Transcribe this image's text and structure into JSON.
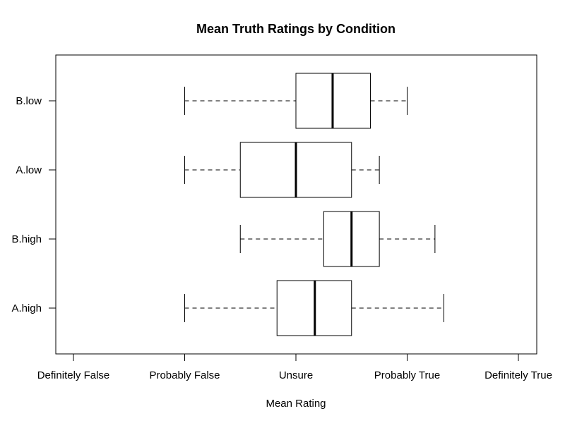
{
  "chart_data": {
    "type": "boxplot",
    "orientation": "horizontal",
    "title": "Mean Truth Ratings by Condition",
    "xlabel": "Mean Rating",
    "ylabel": "",
    "xlim": [
      1,
      5
    ],
    "x_ticks": [
      {
        "value": 1,
        "label": "Definitely False"
      },
      {
        "value": 2,
        "label": "Probably False"
      },
      {
        "value": 3,
        "label": "Unsure"
      },
      {
        "value": 4,
        "label": "Probably True"
      },
      {
        "value": 5,
        "label": "Definitely True"
      }
    ],
    "categories": [
      "A.high",
      "B.high",
      "A.low",
      "B.low"
    ],
    "boxes": [
      {
        "name": "A.high",
        "min": 2.0,
        "q1": 2.83,
        "median": 3.17,
        "q3": 3.5,
        "max": 4.33
      },
      {
        "name": "B.high",
        "min": 2.5,
        "q1": 3.25,
        "median": 3.5,
        "q3": 3.75,
        "max": 4.25
      },
      {
        "name": "A.low",
        "min": 2.0,
        "q1": 2.5,
        "median": 3.0,
        "q3": 3.5,
        "max": 3.75
      },
      {
        "name": "B.low",
        "min": 2.0,
        "q1": 3.0,
        "median": 3.33,
        "q3": 3.67,
        "max": 4.0
      }
    ],
    "grid": false,
    "legend": "none"
  }
}
